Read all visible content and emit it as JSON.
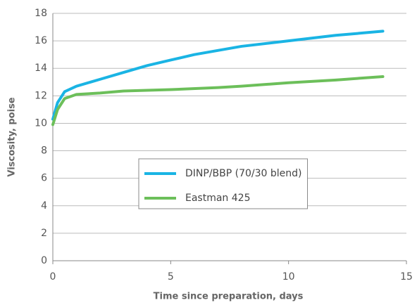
{
  "chart_data": {
    "type": "line",
    "x_label": "Time since preparation, days",
    "y_label": "Viscosity, poise",
    "xlim": [
      0,
      15
    ],
    "xticks": [
      0,
      5,
      10,
      15
    ],
    "ylim": [
      0,
      18
    ],
    "yticks": [
      0,
      2,
      4,
      6,
      8,
      10,
      12,
      14,
      16,
      18
    ],
    "grid": true,
    "series": [
      {
        "name": "DINP/BBP (70/30 blend)",
        "color": "#1ab4e4",
        "x": [
          0,
          0.2,
          0.5,
          1,
          2,
          3,
          4,
          5,
          6,
          7,
          8,
          10,
          12,
          14
        ],
        "values": [
          10.3,
          11.5,
          12.3,
          12.7,
          13.2,
          13.7,
          14.2,
          14.6,
          15.0,
          15.3,
          15.6,
          16.0,
          16.4,
          16.7
        ]
      },
      {
        "name": "Eastman 425",
        "color": "#6cbf5a",
        "x": [
          0,
          0.2,
          0.5,
          1,
          2,
          3,
          5,
          7,
          8,
          10,
          12,
          14
        ],
        "values": [
          9.9,
          11.0,
          11.8,
          12.1,
          12.2,
          12.35,
          12.45,
          12.6,
          12.7,
          12.95,
          13.15,
          13.4
        ]
      }
    ]
  }
}
